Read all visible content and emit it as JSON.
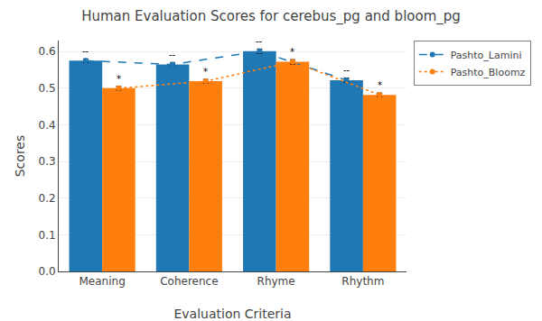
{
  "chart_data": {
    "type": "bar",
    "title": "Human Evaluation Scores for cerebus_pg and bloom_pg",
    "xlabel": "Evaluation Criteria",
    "ylabel": "Scores",
    "categories": [
      "Meaning",
      "Coherence",
      "Rhyme",
      "Rhythm"
    ],
    "series": [
      {
        "name": "Pashto_Lamini",
        "color": "#1f77b4",
        "values": [
          0.575,
          0.565,
          0.601,
          0.522
        ],
        "errors": [
          0.005,
          0.005,
          0.006,
          0.006
        ],
        "line_style": "dashed",
        "marker": "circle",
        "annotation": "--"
      },
      {
        "name": "Pashto_Bloomz",
        "color": "#ff7f0e",
        "values": [
          0.5,
          0.519,
          0.572,
          0.482
        ],
        "errors": [
          0.005,
          0.005,
          0.006,
          0.005
        ],
        "line_style": "dotted",
        "marker": "circle",
        "annotation": "*"
      }
    ],
    "ylim": [
      0.0,
      0.63
    ],
    "yticks": [
      {
        "value": 0,
        "label": "0.0"
      },
      0.1,
      0.2,
      0.3,
      0.4,
      0.5,
      0.6
    ],
    "grid": true,
    "legend": "upper right"
  }
}
